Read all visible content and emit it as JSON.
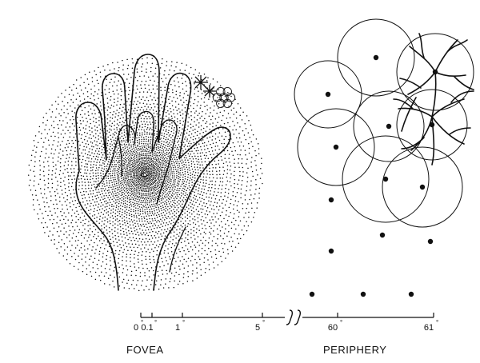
{
  "scale": {
    "ticks": [
      {
        "value": "0",
        "unit": "°"
      },
      {
        "value": "0.1",
        "unit": "°"
      },
      {
        "value": "1",
        "unit": "°"
      },
      {
        "value": "5",
        "unit": "°"
      },
      {
        "value": "60",
        "unit": "°"
      },
      {
        "value": "61",
        "unit": "°"
      }
    ]
  },
  "labels": {
    "fovea": "FOVEA",
    "periphery": "PERIPHERY"
  },
  "icons": {
    "break": "axis-break-icon"
  },
  "colors": {
    "ink": "#111111",
    "background": "#ffffff"
  }
}
